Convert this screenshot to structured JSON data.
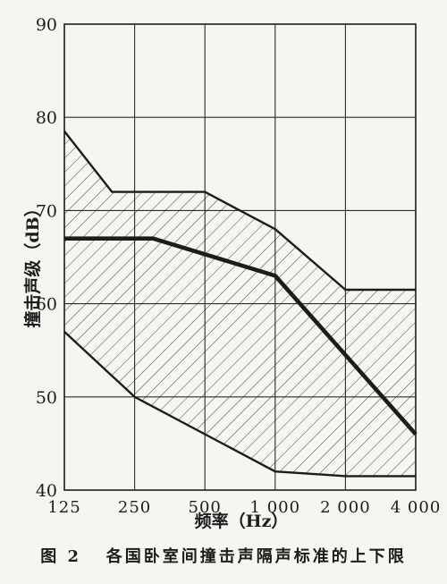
{
  "chart_data": {
    "type": "area",
    "xlabel": "频率（Hz）",
    "ylabel": "撞击声级（dB）",
    "x_tick_labels": [
      "125",
      "250",
      "500",
      "1 000",
      "2 000",
      "4 000"
    ],
    "y_tick_labels": [
      "40",
      "50",
      "60",
      "70",
      "80",
      "90"
    ],
    "ylim": [
      40,
      90
    ],
    "xscale": "log2",
    "xlim": [
      125,
      4000
    ],
    "grid": true,
    "series": [
      {
        "role": "upper",
        "x": [
          125,
          200,
          500,
          1000,
          2000,
          4000
        ],
        "y": [
          78.5,
          72,
          72,
          68,
          61.5,
          61.5
        ]
      },
      {
        "role": "middle",
        "x": [
          125,
          300,
          1000,
          4000
        ],
        "y": [
          67,
          67,
          63,
          46
        ]
      },
      {
        "role": "lower",
        "x": [
          125,
          250,
          500,
          1000,
          2000,
          4000
        ],
        "y": [
          57,
          50,
          46,
          42,
          41.5,
          41.5
        ]
      }
    ],
    "fill": "hatched band between upper and lower curves"
  },
  "caption": "图 2   各国卧室间撞击声隔声标准的上下限",
  "colors": {
    "ink": "#1c1c1c",
    "paper": "#f6f5f1",
    "grid": "#2a2a2a"
  }
}
